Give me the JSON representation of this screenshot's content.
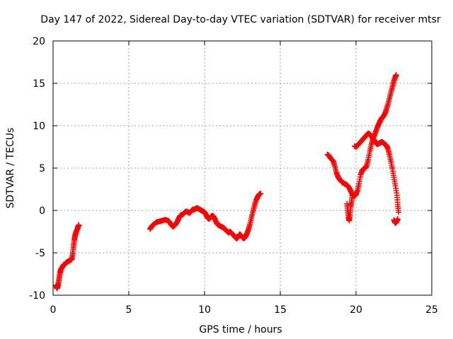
{
  "chart_data": {
    "type": "scatter",
    "title": "Day 147 of 2022, Sidereal Day-to-day VTEC variation (SDTVAR) for receiver mtsr",
    "xlabel": "GPS time / hours",
    "ylabel": "SDTVAR / TECUs",
    "xlim": [
      0,
      25
    ],
    "ylim": [
      -10,
      20
    ],
    "xticks": [
      0,
      5,
      10,
      15,
      20,
      25
    ],
    "yticks": [
      -10,
      -5,
      0,
      5,
      10,
      15,
      20
    ],
    "grid": true,
    "marker": "plus",
    "series": [
      {
        "name": "SDTVAR",
        "color": "#ff0000",
        "segments": [
          [
            [
              0.2,
              -8.8
            ],
            [
              0.25,
              -9.2
            ],
            [
              0.3,
              -9.0
            ],
            [
              0.35,
              -8.6
            ],
            [
              0.4,
              -8.0
            ],
            [
              0.45,
              -7.4
            ],
            [
              0.5,
              -7.0
            ],
            [
              0.6,
              -6.7
            ],
            [
              0.7,
              -6.4
            ],
            [
              0.8,
              -6.3
            ],
            [
              0.9,
              -6.1
            ],
            [
              1.0,
              -6.0
            ],
            [
              1.1,
              -5.9
            ],
            [
              1.2,
              -5.8
            ],
            [
              1.25,
              -5.6
            ],
            [
              1.3,
              -5.0
            ],
            [
              1.35,
              -4.2
            ],
            [
              1.4,
              -3.5
            ],
            [
              1.45,
              -3.0
            ],
            [
              1.5,
              -2.6
            ],
            [
              1.6,
              -2.2
            ],
            [
              1.65,
              -1.9
            ],
            [
              1.7,
              -1.7
            ]
          ],
          [
            [
              6.4,
              -2.2
            ],
            [
              6.5,
              -1.9
            ],
            [
              6.6,
              -1.7
            ],
            [
              6.8,
              -1.4
            ],
            [
              7.0,
              -1.3
            ],
            [
              7.2,
              -1.2
            ],
            [
              7.4,
              -1.1
            ],
            [
              7.6,
              -1.2
            ],
            [
              7.7,
              -1.4
            ],
            [
              7.8,
              -1.7
            ],
            [
              7.9,
              -1.9
            ],
            [
              8.0,
              -1.8
            ],
            [
              8.1,
              -1.6
            ],
            [
              8.2,
              -1.3
            ],
            [
              8.3,
              -0.9
            ],
            [
              8.4,
              -0.6
            ],
            [
              8.5,
              -0.5
            ],
            [
              8.6,
              -0.4
            ],
            [
              8.7,
              -0.2
            ],
            [
              8.8,
              -0.1
            ],
            [
              8.9,
              -0.2
            ],
            [
              9.0,
              -0.3
            ],
            [
              9.1,
              -0.1
            ],
            [
              9.2,
              0.1
            ],
            [
              9.3,
              0.1
            ],
            [
              9.4,
              0.2
            ],
            [
              9.5,
              0.3
            ],
            [
              9.6,
              0.2
            ],
            [
              9.7,
              0.1
            ],
            [
              9.8,
              0.0
            ],
            [
              9.9,
              -0.1
            ],
            [
              10.0,
              -0.2
            ],
            [
              10.1,
              -0.5
            ],
            [
              10.2,
              -0.9
            ],
            [
              10.3,
              -1.0
            ],
            [
              10.4,
              -0.8
            ],
            [
              10.5,
              -0.6
            ],
            [
              10.6,
              -0.7
            ],
            [
              10.7,
              -1.1
            ],
            [
              10.8,
              -1.5
            ],
            [
              10.9,
              -1.7
            ],
            [
              11.0,
              -1.8
            ],
            [
              11.1,
              -1.9
            ],
            [
              11.2,
              -2.0
            ],
            [
              11.3,
              -2.1
            ],
            [
              11.4,
              -2.3
            ],
            [
              11.5,
              -2.5
            ],
            [
              11.6,
              -2.6
            ],
            [
              11.7,
              -2.5
            ],
            [
              11.8,
              -2.7
            ],
            [
              11.9,
              -2.9
            ],
            [
              12.0,
              -3.1
            ],
            [
              12.1,
              -3.3
            ],
            [
              12.2,
              -3.2
            ],
            [
              12.3,
              -2.8
            ],
            [
              12.4,
              -2.9
            ],
            [
              12.5,
              -3.2
            ],
            [
              12.6,
              -3.3
            ],
            [
              12.7,
              -3.1
            ],
            [
              12.8,
              -2.7
            ],
            [
              12.9,
              -2.2
            ],
            [
              13.0,
              -1.6
            ],
            [
              13.1,
              -0.8
            ],
            [
              13.2,
              -0.1
            ],
            [
              13.3,
              0.6
            ],
            [
              13.4,
              1.2
            ],
            [
              13.5,
              1.6
            ],
            [
              13.6,
              1.9
            ],
            [
              13.7,
              2.0
            ]
          ],
          [
            [
              18.1,
              6.6
            ],
            [
              18.2,
              6.5
            ],
            [
              18.3,
              6.2
            ],
            [
              18.4,
              6.0
            ],
            [
              18.5,
              5.8
            ],
            [
              18.6,
              5.2
            ],
            [
              18.7,
              4.5
            ],
            [
              18.8,
              4.0
            ],
            [
              18.9,
              3.7
            ],
            [
              19.0,
              3.5
            ],
            [
              19.1,
              3.3
            ],
            [
              19.2,
              3.2
            ],
            [
              19.3,
              3.1
            ],
            [
              19.4,
              3.0
            ],
            [
              19.5,
              2.8
            ],
            [
              19.6,
              2.5
            ],
            [
              19.7,
              2.1
            ],
            [
              19.8,
              1.8
            ],
            [
              19.9,
              1.7
            ],
            [
              20.0,
              1.9
            ],
            [
              20.1,
              2.4
            ],
            [
              20.2,
              3.2
            ],
            [
              20.3,
              4.2
            ],
            [
              20.4,
              4.7
            ],
            [
              20.5,
              4.9
            ],
            [
              20.6,
              5.0
            ],
            [
              20.7,
              5.3
            ],
            [
              20.8,
              6.0
            ],
            [
              20.9,
              6.9
            ],
            [
              21.0,
              7.7
            ],
            [
              21.1,
              8.3
            ],
            [
              21.2,
              8.8
            ],
            [
              21.3,
              9.3
            ],
            [
              21.4,
              9.8
            ],
            [
              21.5,
              10.2
            ],
            [
              21.6,
              10.6
            ],
            [
              21.7,
              10.9
            ],
            [
              21.8,
              11.1
            ],
            [
              21.9,
              11.4
            ],
            [
              22.0,
              11.9
            ],
            [
              22.1,
              12.5
            ],
            [
              22.2,
              13.2
            ],
            [
              22.3,
              13.9
            ],
            [
              22.4,
              14.6
            ],
            [
              22.5,
              15.3
            ],
            [
              22.6,
              15.8
            ],
            [
              22.65,
              16.0
            ]
          ],
          [
            [
              19.4,
              0.8
            ],
            [
              19.45,
              0.0
            ],
            [
              19.5,
              -0.8
            ],
            [
              19.55,
              -1.2
            ],
            [
              19.6,
              -0.5
            ],
            [
              19.65,
              0.4
            ],
            [
              19.7,
              1.0
            ],
            [
              19.75,
              1.7
            ],
            [
              19.8,
              2.0
            ]
          ],
          [
            [
              19.9,
              7.6
            ],
            [
              20.0,
              7.5
            ],
            [
              20.1,
              7.7
            ],
            [
              20.2,
              7.9
            ],
            [
              20.3,
              8.1
            ],
            [
              20.4,
              8.3
            ],
            [
              20.5,
              8.5
            ],
            [
              20.6,
              8.7
            ],
            [
              20.7,
              8.9
            ],
            [
              20.8,
              9.1
            ],
            [
              20.9,
              9.0
            ],
            [
              21.0,
              8.8
            ],
            [
              21.1,
              8.5
            ],
            [
              21.2,
              8.3
            ],
            [
              21.3,
              8.0
            ],
            [
              21.4,
              7.8
            ],
            [
              21.5,
              7.9
            ],
            [
              21.6,
              8.0
            ],
            [
              21.7,
              8.1
            ],
            [
              21.8,
              8.0
            ],
            [
              21.9,
              7.8
            ],
            [
              22.0,
              7.7
            ],
            [
              22.1,
              7.3
            ],
            [
              22.2,
              6.6
            ],
            [
              22.3,
              5.8
            ],
            [
              22.4,
              4.9
            ],
            [
              22.5,
              3.9
            ],
            [
              22.6,
              2.9
            ],
            [
              22.7,
              1.8
            ],
            [
              22.75,
              0.7
            ],
            [
              22.8,
              -0.2
            ]
          ],
          [
            [
              22.5,
              -1.1
            ],
            [
              22.55,
              -1.3
            ],
            [
              22.6,
              -1.5
            ],
            [
              22.65,
              -1.4
            ],
            [
              22.7,
              -1.2
            ],
            [
              22.75,
              -1.0
            ]
          ]
        ]
      }
    ]
  }
}
